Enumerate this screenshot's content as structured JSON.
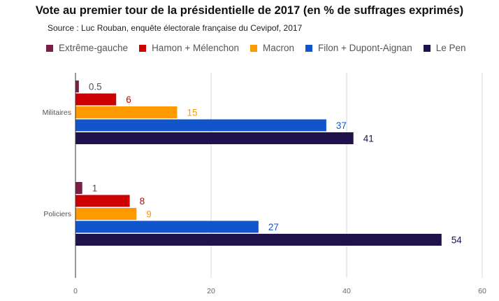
{
  "chart_data": {
    "type": "bar",
    "orientation": "horizontal",
    "title": "Vote au premier tour de la présidentielle de 2017 (en % de suffrages exprimés)",
    "subtitle": "Source : Luc Rouban, enquête électorale française du Cevipof, 2017",
    "categories": [
      "Militaires",
      "Policiers"
    ],
    "series": [
      {
        "name": "Extrême-gauche",
        "color": "#7b1f48",
        "values": [
          0.5,
          1
        ]
      },
      {
        "name": "Hamon + Mélenchon",
        "color": "#cc0000",
        "values": [
          6,
          8
        ]
      },
      {
        "name": "Macron",
        "color": "#ff9900",
        "values": [
          15,
          9
        ]
      },
      {
        "name": "Filon + Dupont-Aignan",
        "color": "#1155cc",
        "values": [
          37,
          27
        ]
      },
      {
        "name": "Le Pen",
        "color": "#20124d",
        "values": [
          41,
          54
        ]
      }
    ],
    "data_labels": [
      [
        "0.5",
        "6",
        "15",
        "37",
        "41"
      ],
      [
        "1",
        "8",
        "9",
        "27",
        "54"
      ]
    ],
    "label_colors": [
      "#555555",
      "#cc0000",
      "#ff9900",
      "#1155cc",
      "#20124d"
    ],
    "xlim": [
      0,
      60
    ],
    "xticks": [
      "0",
      "20",
      "40",
      "60"
    ],
    "grid": "vertical",
    "legend_position": "top"
  }
}
